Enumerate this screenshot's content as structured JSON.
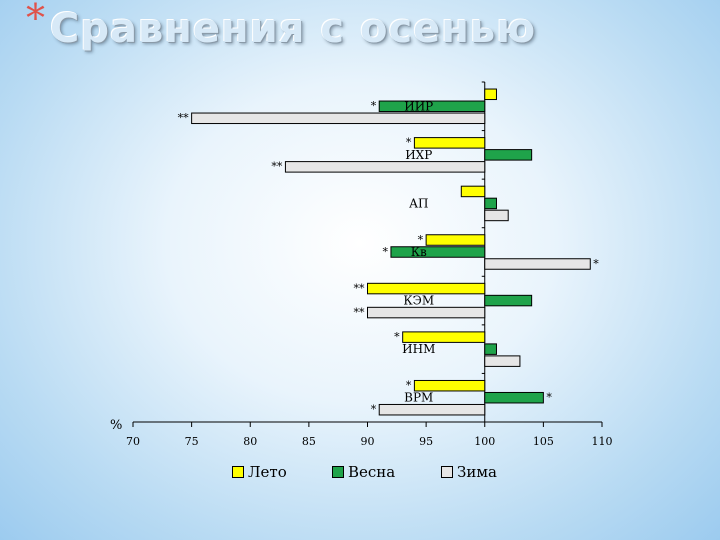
{
  "slide": {
    "title": "Сравнения с осенью",
    "title_marker": "*"
  },
  "chart_data": {
    "type": "bar",
    "orientation": "horizontal",
    "y_unit_label": "%",
    "xlim": [
      70,
      110
    ],
    "x_ticks": [
      70,
      75,
      80,
      85,
      90,
      95,
      100,
      105,
      110
    ],
    "baseline": 100,
    "categories": [
      "ИИР",
      "ИХР",
      "АП",
      "Кв",
      "КЭМ",
      "ИНМ",
      "ВРМ"
    ],
    "series": [
      {
        "name": "Лето",
        "color": "#ffff00",
        "values": [
          101,
          94,
          98,
          95,
          90,
          93,
          94
        ],
        "marks": [
          "",
          "*",
          "",
          "*",
          "**",
          "*",
          "*"
        ]
      },
      {
        "name": "Весна",
        "color": "#1fa34a",
        "values": [
          91,
          104,
          101,
          92,
          104,
          101,
          105
        ],
        "marks": [
          "*",
          "",
          "",
          "*",
          "",
          "",
          "*"
        ]
      },
      {
        "name": "Зима",
        "color": "#e6e6e6",
        "values": [
          75,
          83,
          102,
          109,
          90,
          103,
          91
        ],
        "marks": [
          "**",
          "**",
          "",
          "*",
          "**",
          "",
          "*"
        ]
      }
    ],
    "grid": false,
    "legend_position": "bottom"
  }
}
